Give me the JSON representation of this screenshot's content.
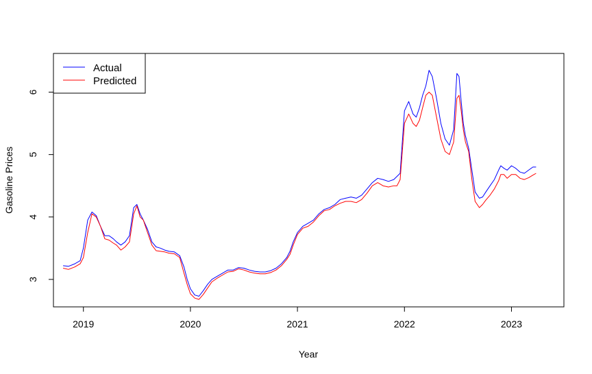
{
  "chart_data": {
    "type": "line",
    "title": "",
    "xlabel": "Year",
    "ylabel": "Gasoline Prices",
    "xlim": [
      2018.72,
      2023.49
    ],
    "ylim": [
      2.56,
      6.62
    ],
    "xticks": [
      2019,
      2020,
      2021,
      2022,
      2023
    ],
    "xtick_labels": [
      "2019",
      "2020",
      "2021",
      "2022",
      "2023"
    ],
    "yticks": [
      3,
      4,
      5,
      6
    ],
    "ytick_labels": [
      "3",
      "4",
      "5",
      "6"
    ],
    "grid": false,
    "legend_position": "top-left",
    "series": [
      {
        "name": "Actual",
        "color": "#0000ff",
        "x": [
          2018.81,
          2018.86,
          2018.92,
          2018.97,
          2019.0,
          2019.04,
          2019.08,
          2019.12,
          2019.16,
          2019.2,
          2019.24,
          2019.28,
          2019.31,
          2019.35,
          2019.39,
          2019.43,
          2019.47,
          2019.5,
          2019.53,
          2019.56,
          2019.6,
          2019.64,
          2019.68,
          2019.72,
          2019.76,
          2019.8,
          2019.85,
          2019.9,
          2019.94,
          2019.97,
          2020.0,
          2020.04,
          2020.08,
          2020.12,
          2020.16,
          2020.2,
          2020.25,
          2020.3,
          2020.35,
          2020.4,
          2020.45,
          2020.5,
          2020.55,
          2020.6,
          2020.65,
          2020.7,
          2020.75,
          2020.8,
          2020.85,
          2020.9,
          2020.93,
          2020.96,
          2021.0,
          2021.05,
          2021.1,
          2021.15,
          2021.2,
          2021.25,
          2021.3,
          2021.35,
          2021.4,
          2021.45,
          2021.5,
          2021.55,
          2021.6,
          2021.65,
          2021.7,
          2021.75,
          2021.8,
          2021.85,
          2021.9,
          2021.93,
          2021.96,
          2022.0,
          2022.04,
          2022.08,
          2022.11,
          2022.14,
          2022.17,
          2022.2,
          2022.23,
          2022.26,
          2022.3,
          2022.34,
          2022.38,
          2022.42,
          2022.46,
          2022.49,
          2022.51,
          2022.53,
          2022.55,
          2022.57,
          2022.6,
          2022.63,
          2022.66,
          2022.7,
          2022.73,
          2022.76,
          2022.8,
          2022.84,
          2022.88,
          2022.9,
          2022.93,
          2022.96,
          2023.0,
          2023.04,
          2023.08,
          2023.12,
          2023.16,
          2023.2,
          2023.23
        ],
        "values": [
          3.22,
          3.21,
          3.25,
          3.3,
          3.5,
          3.95,
          4.08,
          4.02,
          3.85,
          3.7,
          3.7,
          3.65,
          3.6,
          3.55,
          3.6,
          3.7,
          4.15,
          4.2,
          4.05,
          3.95,
          3.8,
          3.6,
          3.52,
          3.5,
          3.47,
          3.45,
          3.44,
          3.38,
          3.2,
          3.0,
          2.85,
          2.75,
          2.73,
          2.82,
          2.92,
          3.0,
          3.05,
          3.1,
          3.15,
          3.15,
          3.19,
          3.18,
          3.15,
          3.13,
          3.12,
          3.12,
          3.14,
          3.18,
          3.25,
          3.35,
          3.45,
          3.6,
          3.75,
          3.85,
          3.9,
          3.95,
          4.05,
          4.12,
          4.15,
          4.2,
          4.28,
          4.3,
          4.32,
          4.3,
          4.35,
          4.45,
          4.55,
          4.62,
          4.6,
          4.57,
          4.6,
          4.65,
          4.7,
          5.7,
          5.85,
          5.65,
          5.6,
          5.75,
          5.95,
          6.1,
          6.35,
          6.25,
          5.9,
          5.5,
          5.25,
          5.15,
          5.4,
          6.3,
          6.25,
          5.85,
          5.5,
          5.3,
          5.1,
          4.75,
          4.4,
          4.3,
          4.32,
          4.4,
          4.5,
          4.6,
          4.75,
          4.82,
          4.78,
          4.75,
          4.82,
          4.78,
          4.72,
          4.7,
          4.75,
          4.8,
          4.8
        ]
      },
      {
        "name": "Predicted",
        "color": "#ff0000",
        "x": [
          2018.81,
          2018.86,
          2018.92,
          2018.97,
          2019.0,
          2019.04,
          2019.08,
          2019.12,
          2019.16,
          2019.2,
          2019.24,
          2019.28,
          2019.31,
          2019.35,
          2019.39,
          2019.43,
          2019.47,
          2019.5,
          2019.53,
          2019.56,
          2019.6,
          2019.64,
          2019.68,
          2019.72,
          2019.76,
          2019.8,
          2019.85,
          2019.9,
          2019.94,
          2019.97,
          2020.0,
          2020.04,
          2020.08,
          2020.12,
          2020.16,
          2020.2,
          2020.25,
          2020.3,
          2020.35,
          2020.4,
          2020.45,
          2020.5,
          2020.55,
          2020.6,
          2020.65,
          2020.7,
          2020.75,
          2020.8,
          2020.85,
          2020.9,
          2020.93,
          2020.96,
          2021.0,
          2021.05,
          2021.1,
          2021.15,
          2021.2,
          2021.25,
          2021.3,
          2021.35,
          2021.4,
          2021.45,
          2021.5,
          2021.55,
          2021.6,
          2021.65,
          2021.7,
          2021.75,
          2021.8,
          2021.85,
          2021.9,
          2021.93,
          2021.96,
          2022.0,
          2022.04,
          2022.08,
          2022.11,
          2022.14,
          2022.17,
          2022.2,
          2022.23,
          2022.26,
          2022.3,
          2022.34,
          2022.38,
          2022.42,
          2022.46,
          2022.49,
          2022.51,
          2022.53,
          2022.55,
          2022.57,
          2022.6,
          2022.63,
          2022.66,
          2022.7,
          2022.73,
          2022.76,
          2022.8,
          2022.84,
          2022.88,
          2022.9,
          2022.93,
          2022.96,
          2023.0,
          2023.04,
          2023.08,
          2023.12,
          2023.16,
          2023.2,
          2023.23
        ],
        "values": [
          3.18,
          3.16,
          3.2,
          3.25,
          3.35,
          3.75,
          4.05,
          4.0,
          3.85,
          3.65,
          3.63,
          3.58,
          3.55,
          3.47,
          3.52,
          3.6,
          4.05,
          4.18,
          4.0,
          3.95,
          3.75,
          3.55,
          3.46,
          3.45,
          3.44,
          3.42,
          3.41,
          3.35,
          3.1,
          2.92,
          2.77,
          2.7,
          2.68,
          2.76,
          2.86,
          2.96,
          3.02,
          3.07,
          3.12,
          3.13,
          3.17,
          3.15,
          3.12,
          3.1,
          3.09,
          3.09,
          3.11,
          3.15,
          3.22,
          3.32,
          3.4,
          3.55,
          3.72,
          3.82,
          3.85,
          3.92,
          4.02,
          4.1,
          4.12,
          4.18,
          4.22,
          4.25,
          4.25,
          4.23,
          4.28,
          4.38,
          4.5,
          4.55,
          4.5,
          4.48,
          4.5,
          4.5,
          4.6,
          5.5,
          5.65,
          5.5,
          5.45,
          5.55,
          5.75,
          5.95,
          6.0,
          5.95,
          5.6,
          5.25,
          5.05,
          5.0,
          5.2,
          5.9,
          5.95,
          5.7,
          5.4,
          5.2,
          5.05,
          4.6,
          4.25,
          4.15,
          4.2,
          4.27,
          4.35,
          4.45,
          4.58,
          4.68,
          4.68,
          4.62,
          4.68,
          4.68,
          4.62,
          4.6,
          4.63,
          4.67,
          4.7
        ]
      }
    ]
  }
}
